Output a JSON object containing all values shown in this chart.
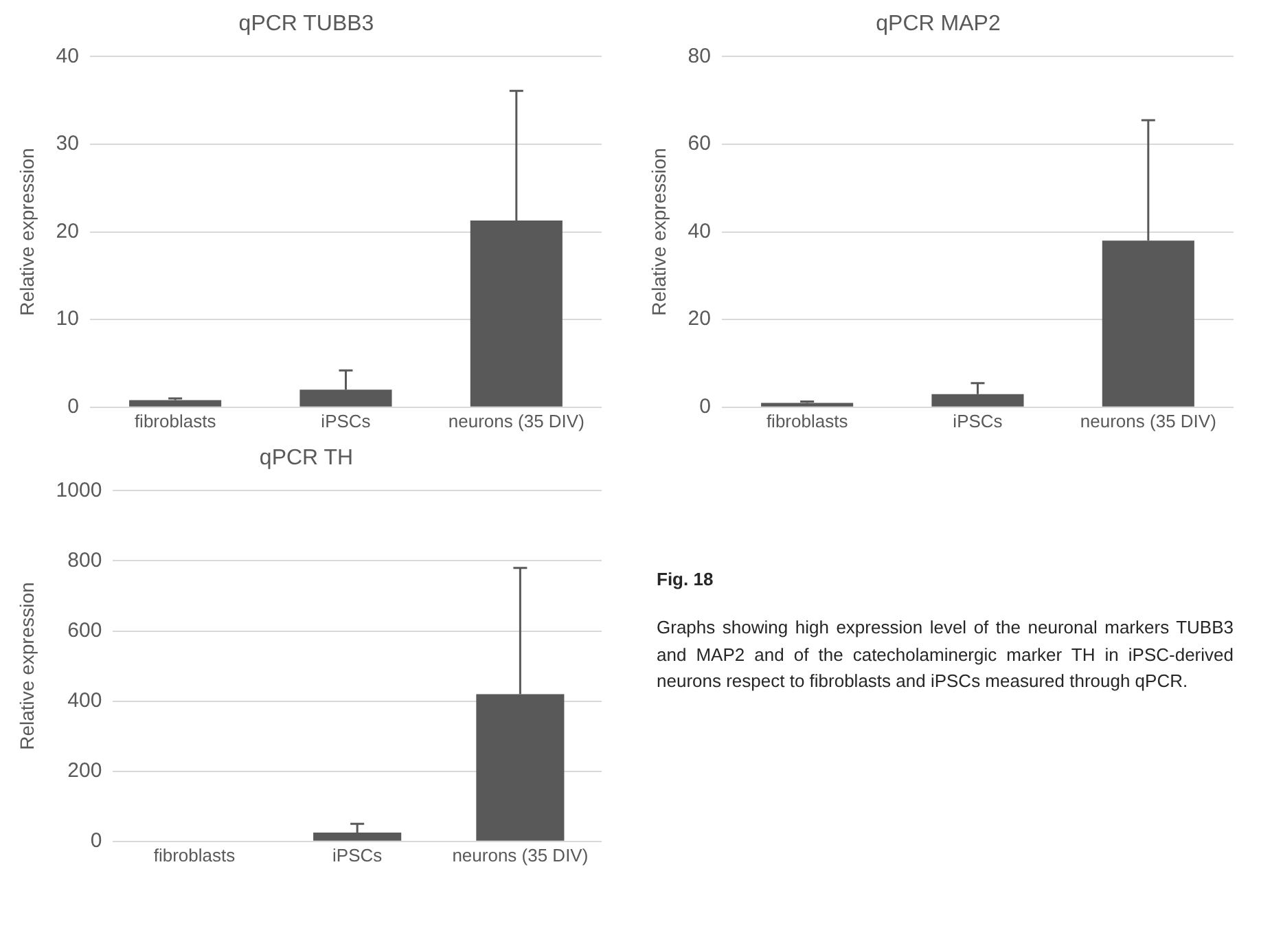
{
  "chart_data": [
    {
      "type": "bar",
      "title": "qPCR TUBB3",
      "ylabel": "Relative expression",
      "categories": [
        "fibroblasts",
        "iPSCs",
        "neurons (35 DIV)"
      ],
      "values": [
        0.8,
        2,
        21.3
      ],
      "errors": [
        [
          0.8,
          1.0
        ],
        [
          2,
          4.2
        ],
        [
          21.3,
          36.1
        ]
      ],
      "color": "#595959",
      "ylim": [
        0,
        40
      ],
      "yticks": [
        0,
        10,
        20,
        30,
        40
      ],
      "grid": "y",
      "legend": false
    },
    {
      "type": "bar",
      "title": "qPCR MAP2",
      "ylabel": "Relative expression",
      "categories": [
        "fibroblasts",
        "iPSCs",
        "neurons (35 DIV)"
      ],
      "values": [
        1,
        3,
        38
      ],
      "errors": [
        [
          1,
          1.3
        ],
        [
          3,
          5.5
        ],
        [
          38,
          65.5
        ]
      ],
      "color": "#595959",
      "ylim": [
        0,
        80
      ],
      "yticks": [
        0,
        20,
        40,
        60,
        80
      ],
      "grid": "y",
      "legend": false
    },
    {
      "type": "bar",
      "title": "qPCR TH",
      "ylabel": "Relative expression",
      "categories": [
        "fibroblasts",
        "iPSCs",
        "neurons (35 DIV)"
      ],
      "values": [
        null,
        25,
        420
      ],
      "errors": [
        null,
        [
          25,
          50
        ],
        [
          420,
          780
        ]
      ],
      "color": "#595959",
      "ylim": [
        0,
        1000
      ],
      "yticks": [
        0,
        200,
        400,
        600,
        800,
        1000
      ],
      "grid": "y",
      "legend": false
    },
    {
      "type": "other",
      "title": "Fig. 18",
      "annotations": [
        "Graphs showing high expression level of the neuronal markers TUBB3 and MAP2 and of the catecholaminergic marker TH in iPSC-derived neurons respect to fibroblasts and iPSCs measured through qPCR."
      ]
    }
  ]
}
